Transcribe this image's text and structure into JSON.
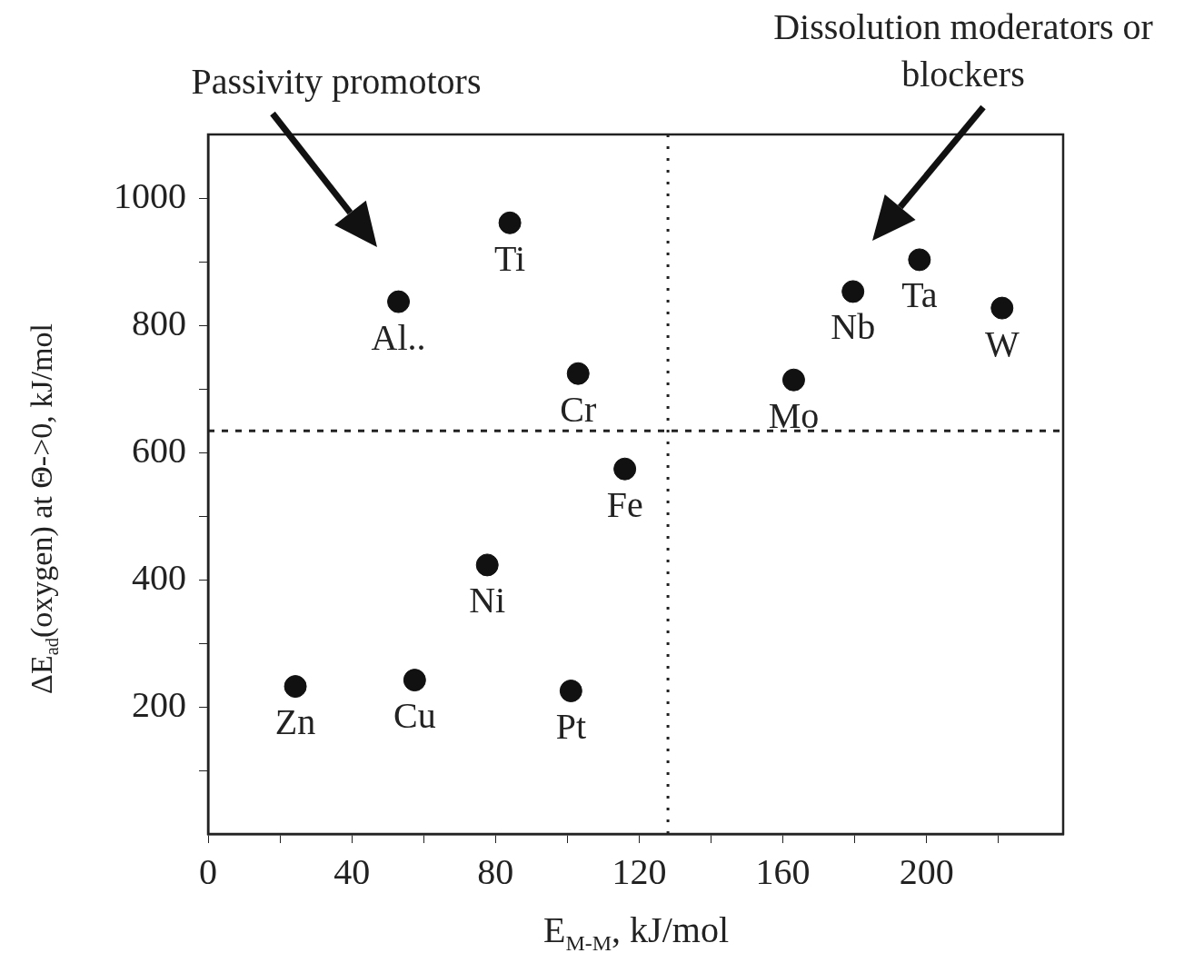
{
  "chart_data": {
    "type": "scatter",
    "xlabel": "E$_{M-M}$, kJ/mol",
    "ylabel": "ΔE$_{ad}$(oxygen) at Θ->0, kJ/mol",
    "x": [
      24.3,
      57.5,
      101,
      77.7,
      116,
      103,
      53,
      84,
      163,
      179.5,
      198,
      221
    ],
    "values": [
      232,
      242,
      225,
      423,
      574,
      724,
      837,
      961,
      714,
      853,
      903,
      827
    ],
    "color": "#111111",
    "marker": "circle",
    "grid": false,
    "xlim": [
      0,
      238
    ],
    "ylim": [
      0,
      1100
    ],
    "xticks": [
      0,
      {
        "value": 20,
        "label": null
      },
      40,
      {
        "value": 60,
        "label": null
      },
      80,
      {
        "value": 100,
        "label": null
      },
      120,
      {
        "value": 140,
        "label": null
      },
      160,
      {
        "value": 180,
        "label": null
      },
      200,
      {
        "value": 220,
        "label": null
      }
    ],
    "yticks": [
      {
        "value": 100,
        "label": null
      },
      200,
      {
        "value": 300,
        "label": null
      },
      400,
      {
        "value": 500,
        "label": null
      },
      600,
      {
        "value": 700,
        "label": null
      },
      800,
      {
        "value": 900,
        "label": null
      },
      1000
    ],
    "ref_lines": [
      {
        "axis": "y",
        "value": 634,
        "line_style": "dashed"
      },
      {
        "axis": "x",
        "value": 128,
        "line_style": "dotted"
      }
    ],
    "annotations": [
      "Passivity promotors",
      "Dissolution moderators or blockers",
      {
        "text": "Zn",
        "x": 24.3,
        "y": 232
      },
      {
        "text": "Cu",
        "x": 57.5,
        "y": 242
      },
      {
        "text": "Pt",
        "x": 101,
        "y": 225
      },
      {
        "text": "Ni",
        "x": 77.7,
        "y": 423
      },
      {
        "text": "Fe",
        "x": 116,
        "y": 574
      },
      {
        "text": "Cr",
        "x": 103,
        "y": 724
      },
      {
        "text": "Al..",
        "x": 53,
        "y": 837
      },
      {
        "text": "Ti",
        "x": 84,
        "y": 961
      },
      {
        "text": "Mo",
        "x": 163,
        "y": 714
      },
      {
        "text": "Nb",
        "x": 179.5,
        "y": 853
      },
      {
        "text": "Ta",
        "x": 198,
        "y": 903
      },
      {
        "text": "W",
        "x": 221,
        "y": 827
      }
    ]
  }
}
